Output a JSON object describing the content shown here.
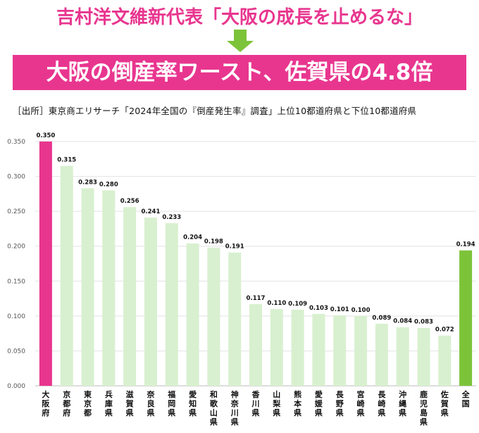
{
  "headline": "吉村洋文維新代表「大阪の成長を止めるな」",
  "banner": "大阪の倒産率ワースト、佐賀県の4.8倍",
  "source": "［出所］東京商エリサーチ「2024年全国の『倒産発生率』調査」上位10都道府県と下位10都道府県",
  "colors": {
    "pink": "#e8368f",
    "light_green": "#d8f0cf",
    "green": "#7dc33a"
  },
  "chart_data": {
    "type": "bar",
    "categories": [
      "大阪府",
      "京都府",
      "東京都",
      "兵庫県",
      "滋賀県",
      "奈良県",
      "福岡県",
      "愛知県",
      "和歌山県",
      "神奈川県",
      "香川県",
      "山梨県",
      "熊本県",
      "愛媛県",
      "長野県",
      "宮崎県",
      "長崎県",
      "沖縄県",
      "鹿児島県",
      "佐賀県",
      "全国"
    ],
    "values": [
      0.35,
      0.315,
      0.283,
      0.28,
      0.256,
      0.241,
      0.233,
      0.204,
      0.198,
      0.191,
      0.117,
      0.11,
      0.109,
      0.103,
      0.101,
      0.1,
      0.089,
      0.084,
      0.083,
      0.072,
      0.194
    ],
    "value_labels": [
      "0.350",
      "0.315",
      "0.283",
      "0.280",
      "0.256",
      "0.241",
      "0.233",
      "0.204",
      "0.198",
      "0.191",
      "0.117",
      "0.110",
      "0.109",
      "0.103",
      "0.101",
      "0.100",
      "0.089",
      "0.084",
      "0.083",
      "0.072",
      "0.194"
    ],
    "bar_colors": [
      "pink",
      "light_green",
      "light_green",
      "light_green",
      "light_green",
      "light_green",
      "light_green",
      "light_green",
      "light_green",
      "light_green",
      "light_green",
      "light_green",
      "light_green",
      "light_green",
      "light_green",
      "light_green",
      "light_green",
      "light_green",
      "light_green",
      "light_green",
      "green"
    ],
    "ylim": [
      0,
      0.35
    ],
    "yticks": [
      "0.000",
      "0.050",
      "0.100",
      "0.150",
      "0.200",
      "0.250",
      "0.300",
      "0.350"
    ],
    "grid": true,
    "legend": "none"
  }
}
